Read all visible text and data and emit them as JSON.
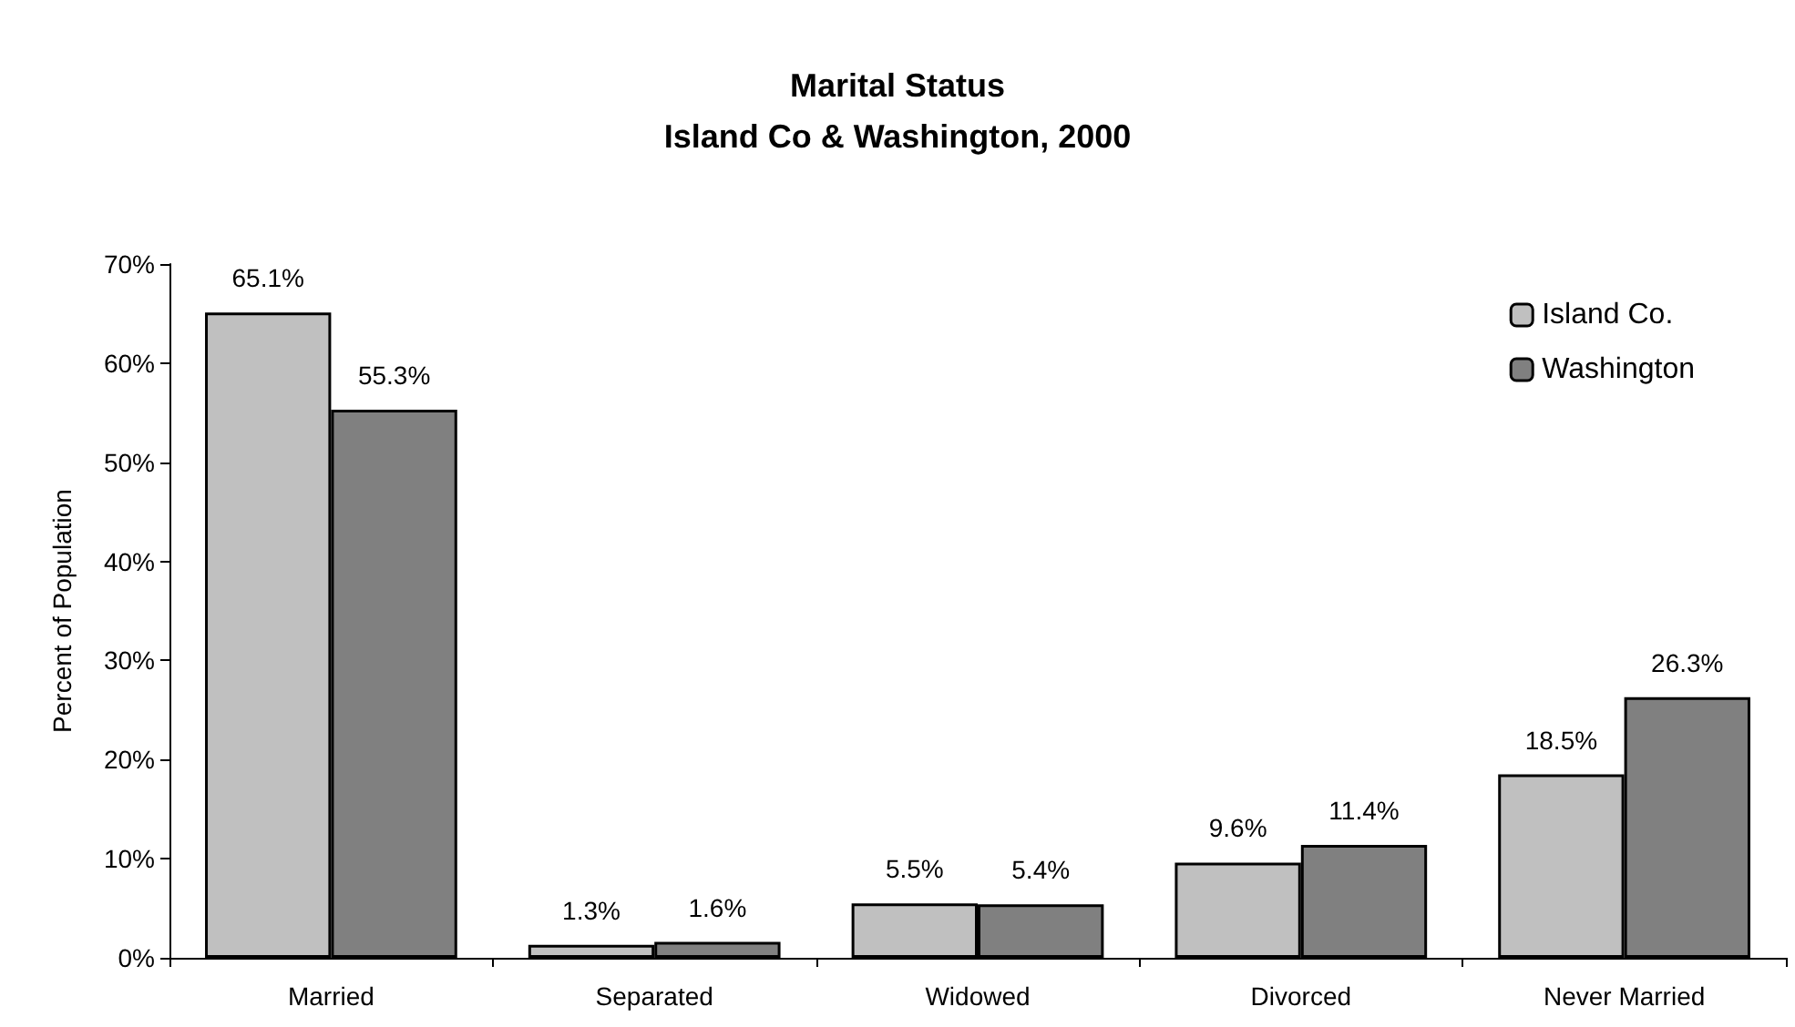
{
  "chart_data": {
    "type": "bar",
    "title": "Marital Status\nIsland Co & Washington, 2000",
    "ylabel": "Percent of Population",
    "categories": [
      "Married",
      "Separated",
      "Widowed",
      "Divorced",
      "Never Married"
    ],
    "series": [
      {
        "name": "Island Co.",
        "color": "#c0c0c0",
        "values": [
          65.1,
          1.3,
          5.5,
          9.6,
          18.5
        ],
        "value_labels": [
          "65.1%",
          "1.3%",
          "5.5%",
          "9.6%",
          "18.5%"
        ]
      },
      {
        "name": "Washington",
        "color": "#808080",
        "values": [
          55.3,
          1.6,
          5.4,
          11.4,
          26.3
        ],
        "value_labels": [
          "55.3%",
          "1.6%",
          "5.4%",
          "11.4%",
          "26.3%"
        ]
      }
    ],
    "ylim": [
      0,
      70
    ],
    "yticks": [
      {
        "value": 0,
        "label": "0%"
      },
      {
        "value": 10,
        "label": "10%"
      },
      {
        "value": 20,
        "label": "20%"
      },
      {
        "value": 30,
        "label": "30%"
      },
      {
        "value": 40,
        "label": "40%"
      },
      {
        "value": 50,
        "label": "50%"
      },
      {
        "value": 60,
        "label": "60%"
      },
      {
        "value": 70,
        "label": "70%"
      }
    ],
    "grid": false,
    "legend": "top right"
  }
}
